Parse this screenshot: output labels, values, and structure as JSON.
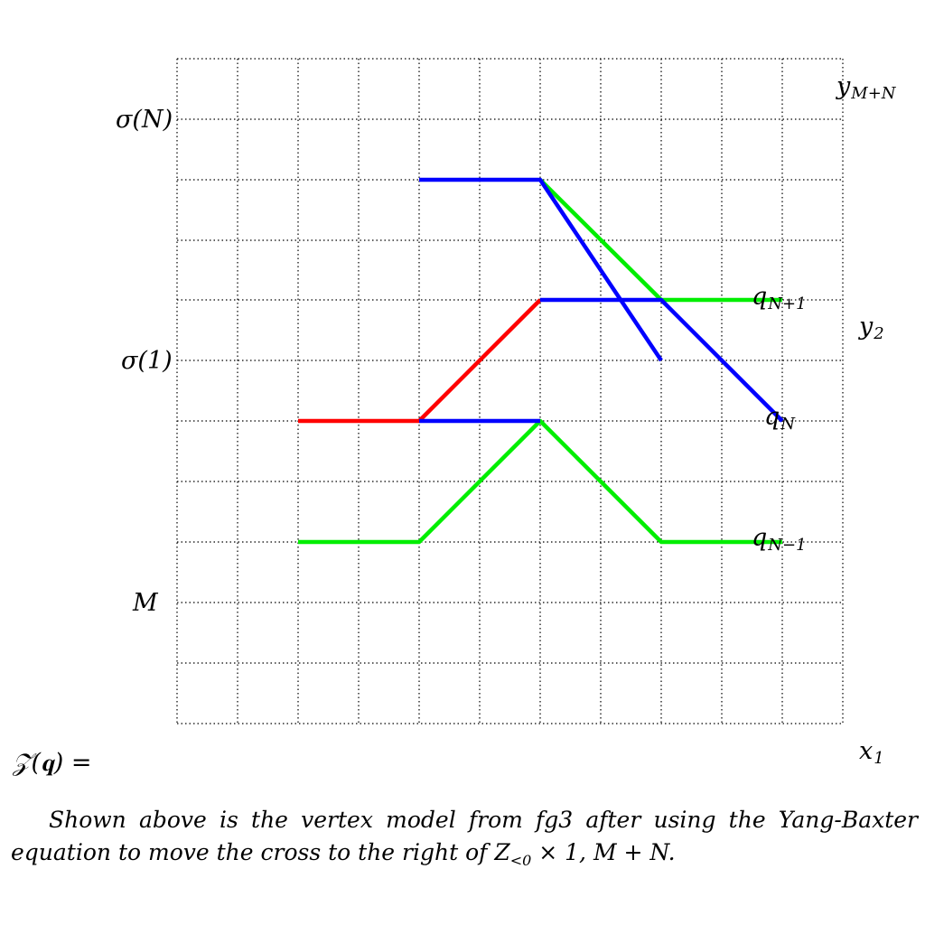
{
  "labels": {
    "sigma_N": "σ(N)",
    "sigma_1": "σ(1)",
    "M": "M",
    "y_top_base": "y",
    "y_top_sub": "M+N",
    "y2_base": "y",
    "y2_sub": "2",
    "x1_base": "x",
    "x1_sub": "1",
    "qN1_base": "q",
    "qN1_sub": "N+1",
    "qN_base": "q",
    "qN_sub": "N",
    "qNm1_base": "q",
    "qNm1_sub": "N−1",
    "partition": "𝒵(𝐪) ="
  },
  "caption": {
    "part1": "Shown above is the vertex model from fg3 after using the Yang-Baxter equation to move the cross to the right of Z",
    "sub": "<0",
    "part2": " × 1, M + N."
  },
  "colors": {
    "green": "#00ee00",
    "red": "#ff0000",
    "blue": "#0000ff",
    "grid": "#000000"
  }
}
